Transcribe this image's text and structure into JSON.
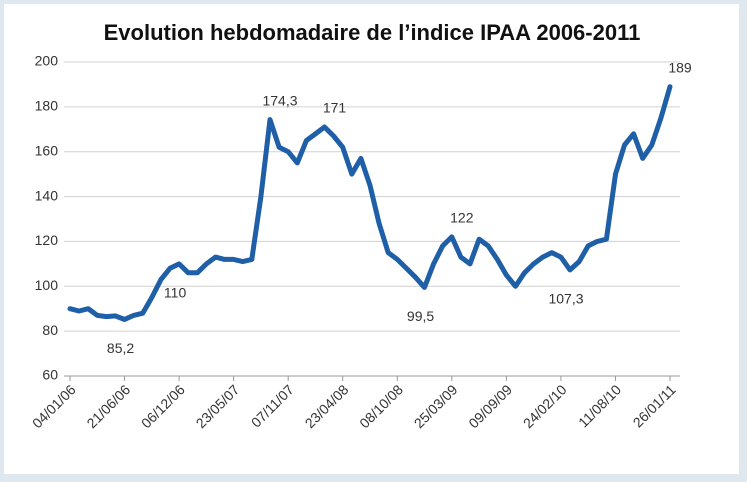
{
  "chart_data": {
    "type": "line",
    "title": "Evolution hebdomadaire de l’indice IPAA 2006-2011",
    "categories": [
      "04/01/06",
      null,
      null,
      null,
      null,
      null,
      "21/06/06",
      null,
      null,
      null,
      null,
      null,
      "06/12/06",
      null,
      null,
      null,
      null,
      null,
      "23/05/07",
      null,
      null,
      null,
      null,
      null,
      "07/11/07",
      null,
      null,
      null,
      null,
      null,
      "23/04/08",
      null,
      null,
      null,
      null,
      null,
      "08/10/08",
      null,
      null,
      null,
      null,
      null,
      "25/03/09",
      null,
      null,
      null,
      null,
      null,
      "09/09/09",
      null,
      null,
      null,
      null,
      null,
      "24/02/10",
      null,
      null,
      null,
      null,
      null,
      "11/08/10",
      null,
      null,
      null,
      null,
      null,
      "26/01/11"
    ],
    "values": [
      90,
      89,
      90,
      87,
      86.5,
      86.8,
      85.2,
      87,
      88,
      95,
      103,
      108,
      110,
      106,
      106,
      110,
      113,
      112,
      112,
      111,
      112,
      140,
      174.3,
      162,
      160,
      155,
      165,
      168,
      171,
      167,
      162,
      150,
      157,
      145,
      128,
      115,
      112,
      108,
      104,
      99.5,
      110,
      118,
      122,
      113,
      110,
      121,
      118,
      112,
      105,
      100,
      106,
      110,
      113,
      115,
      113,
      107.3,
      111,
      118,
      120,
      121,
      150,
      163,
      168,
      157,
      163,
      175,
      189
    ],
    "value_labels": [
      null,
      null,
      null,
      null,
      null,
      null,
      "85,2",
      null,
      null,
      null,
      null,
      null,
      "110",
      null,
      null,
      null,
      null,
      null,
      null,
      null,
      null,
      null,
      "174,3",
      null,
      null,
      null,
      null,
      null,
      "171",
      null,
      null,
      null,
      null,
      null,
      null,
      null,
      null,
      null,
      null,
      "99,5",
      null,
      null,
      "122",
      null,
      null,
      null,
      null,
      null,
      null,
      null,
      null,
      null,
      null,
      null,
      null,
      "107,3",
      null,
      null,
      null,
      null,
      null,
      null,
      null,
      null,
      null,
      null,
      "189"
    ],
    "color": "#1f5fa8",
    "ylim": [
      60,
      200
    ],
    "yticks": [
      60,
      80,
      100,
      120,
      140,
      160,
      180,
      200
    ],
    "grid": true
  }
}
